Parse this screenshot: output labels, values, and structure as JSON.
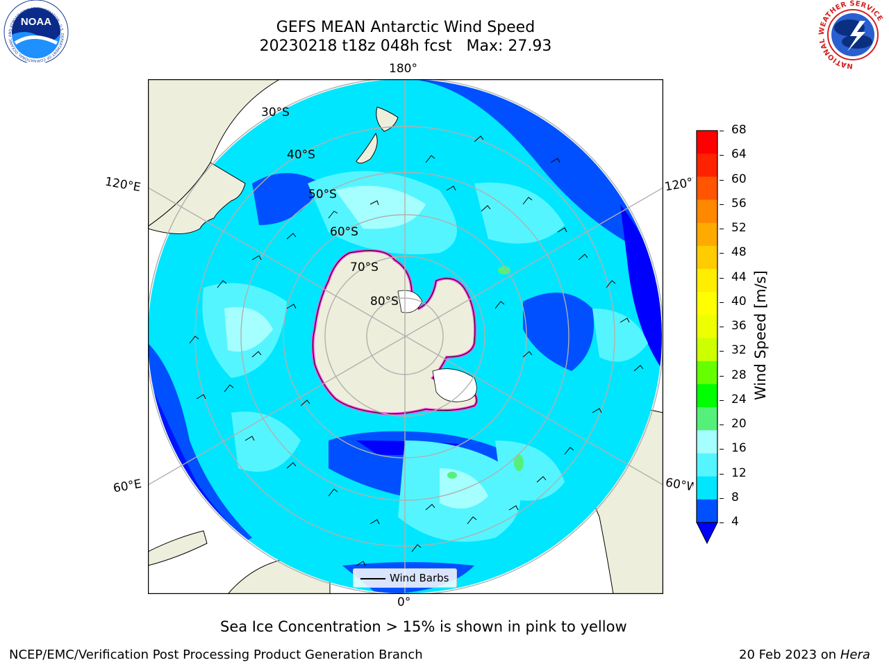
{
  "header": {
    "title_line1": "GEFS MEAN Antarctic Wind Speed",
    "title_line2": "20230218 t18z 048h fcst   Max: 27.93"
  },
  "logos": {
    "noaa_text": "NOAA",
    "noaa_ring_text": "NATIONAL OCEANIC AND ATMOSPHERIC ADMINISTRATION · U.S. DEPARTMENT OF COMMERCE",
    "nws_ring_text": "NATIONAL WEATHER SERVICE"
  },
  "map": {
    "projection": "south-polar-stereographic",
    "longitude_labels": {
      "top": "180°",
      "bottom": "0°",
      "upper_left": "120°E",
      "lower_left": "60°E",
      "upper_right": "120°W",
      "lower_right": "60°W"
    },
    "latitude_labels": [
      "30°S",
      "40°S",
      "50°S",
      "60°S",
      "70°S",
      "80°S"
    ],
    "legend_label": "Wind Barbs",
    "colors": {
      "land": "#eeeedc",
      "wind_4_8": "#0050ff",
      "wind_8_12": "#00e6ff",
      "wind_12_16": "#55f5ff",
      "wind_16_20": "#a5ffff",
      "wind_low": "#0000ff",
      "sea_ice": "#ff44dd",
      "ice_shelf": "#ffffff"
    }
  },
  "colorbar": {
    "label": "Wind Speed [m/s]",
    "ticks": [
      "68",
      "64",
      "60",
      "56",
      "52",
      "48",
      "44",
      "40",
      "36",
      "32",
      "28",
      "24",
      "20",
      "16",
      "12",
      "8",
      "4"
    ],
    "colors_top_to_bottom": [
      "#ff0000",
      "#ff2200",
      "#ff5500",
      "#ff8800",
      "#ffaa00",
      "#ffcc00",
      "#ffee00",
      "#ffff00",
      "#eeff00",
      "#ccff00",
      "#66ff00",
      "#00ff00",
      "#55f07a",
      "#a5ffff",
      "#55f5ff",
      "#00e6ff",
      "#0050ff"
    ],
    "extend_color": "#0000ff"
  },
  "footer": {
    "note": "Sea Ice Concentration > 15% is shown in pink to yellow",
    "credit": "NCEP/EMC/Verification Post Processing Product Generation Branch",
    "date": "20 Feb 2023 on ",
    "machine": "Hera"
  }
}
